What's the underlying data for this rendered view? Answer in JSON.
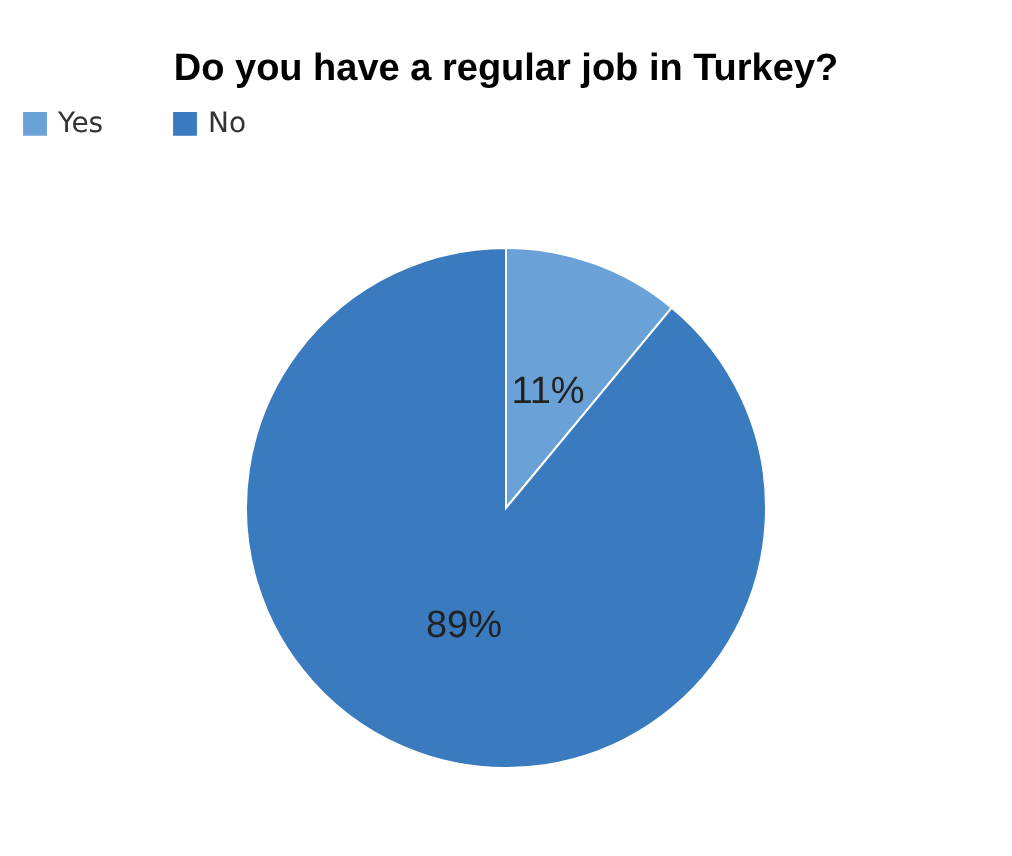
{
  "chart_data": {
    "type": "pie",
    "title": "Do you have a regular job in Turkey?",
    "categories": [
      "Yes",
      "No"
    ],
    "values": [
      11,
      89
    ],
    "colors": [
      "#6aa2d8",
      "#3a7bbf"
    ],
    "value_labels": [
      "11%",
      "89%"
    ],
    "legend": "top"
  }
}
